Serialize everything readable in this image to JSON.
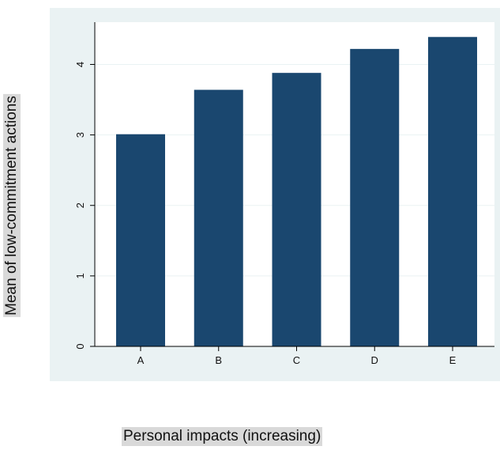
{
  "chart_data": {
    "type": "bar",
    "title": "",
    "xlabel": "Personal impacts (increasing)",
    "ylabel": "Mean of low-commitment actions",
    "categories": [
      "A",
      "B",
      "C",
      "D",
      "E"
    ],
    "values": [
      3.01,
      3.64,
      3.88,
      4.22,
      4.39
    ],
    "ylim": [
      0,
      4.6
    ],
    "yticks": [
      0,
      1,
      2,
      3,
      4
    ],
    "grid": true,
    "legend": "none"
  },
  "colors": {
    "bar": "#1a476f",
    "plot_region": "#ffffff",
    "graph_region": "#eaf2f3",
    "grid": "#eaf2f3",
    "axis": "#000000"
  }
}
